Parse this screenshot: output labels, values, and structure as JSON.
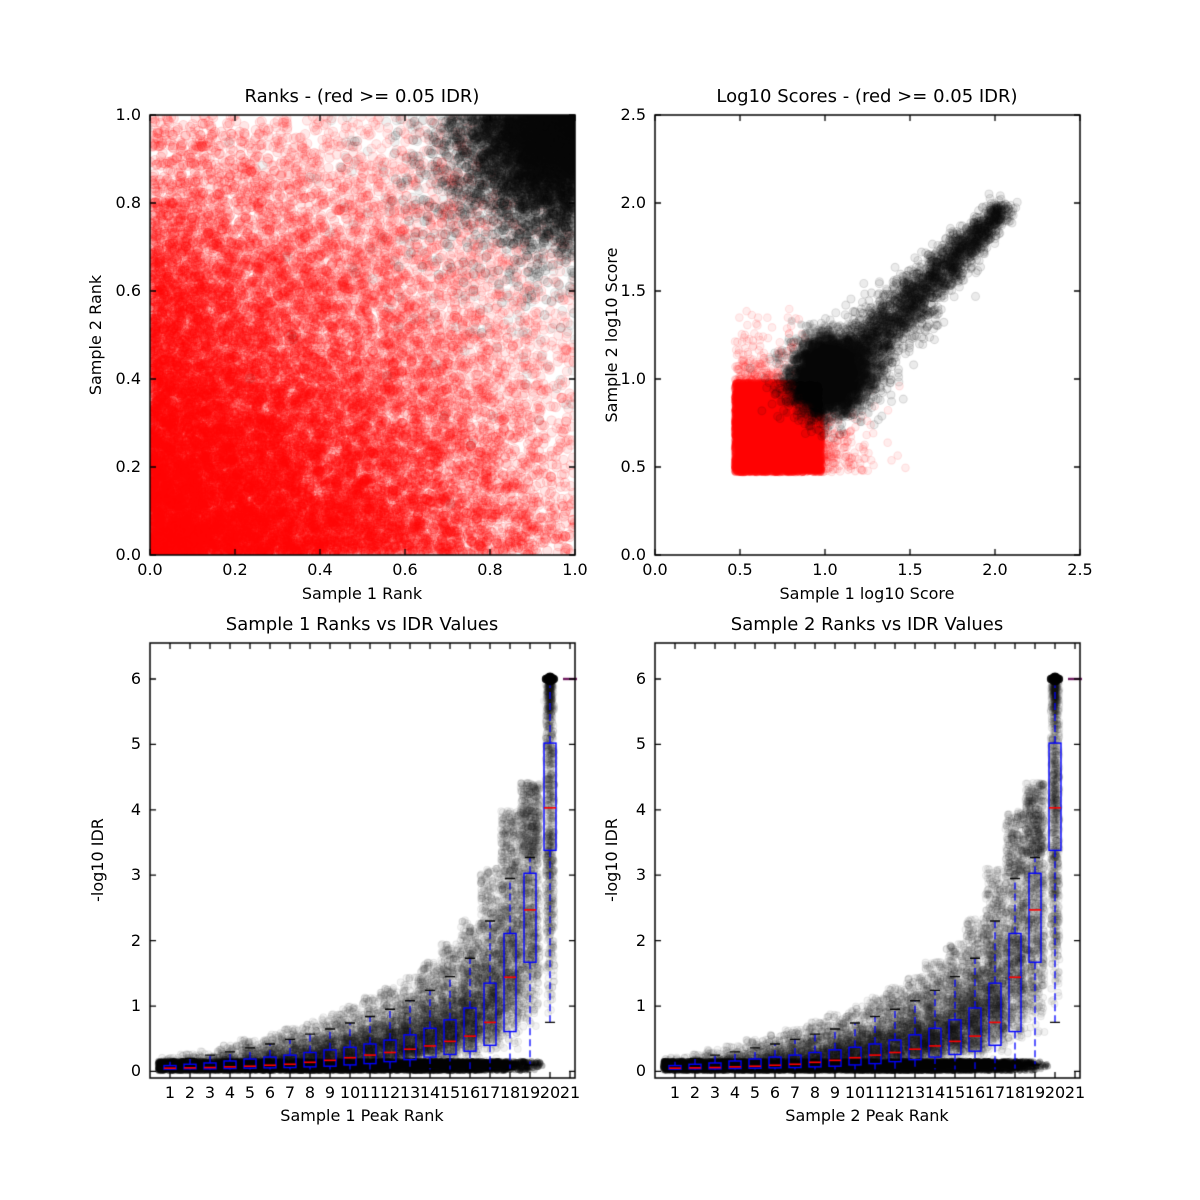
{
  "figure": {
    "background": "#ffffff",
    "description": "Matplotlib-style 2x2 IDR consistency figure: two scatter panels (rank and log10-score consistency, red = irreproducible points with IDR >= 0.05, black = reproducible) and two boxplot-over-scatter panels of -log10 IDR versus peak rank bin."
  },
  "colors": {
    "irreproducible": "#ff0000",
    "reproducible": "#000000",
    "box": "#0000ff",
    "median": "#ff0000",
    "whisker": "#0000ff",
    "cap": "#000000",
    "collapsed_box": "#6e1a5e",
    "axis": "#000000"
  },
  "chart_data": [
    {
      "id": "rank-scatter",
      "type": "scatter",
      "title": "Ranks - (red >= 0.05 IDR)",
      "xlabel": "Sample 1 Rank",
      "ylabel": "Sample 2 Rank",
      "xlim": [
        0.0,
        1.0
      ],
      "ylim": [
        0.0,
        1.0
      ],
      "xticks": [
        0.0,
        0.2,
        0.4,
        0.6,
        0.8,
        1.0
      ],
      "yticks": [
        0.0,
        0.2,
        0.4,
        0.6,
        0.8,
        1.0
      ],
      "tick_format": "f1",
      "grid": false,
      "legend": "none",
      "series": [
        {
          "name": "IDR >= 0.05",
          "color": "#ff0000",
          "description": "fills the unit square; densest (near solid red) toward low ranks around (0,0), fading to sparse pale circles toward (1,1), (0,1) and (1,0)"
        },
        {
          "name": "IDR < 0.05",
          "color": "#000000",
          "description": "dense opaque quarter-disc cluster in the top-right corner near (1,1), radius about 0.3, sparse fringe to 0.45"
        }
      ],
      "clouds": [
        {
          "kind": "fade_square",
          "n": 16000,
          "alpha_base": 0.05,
          "alpha_gain": 0.2,
          "fade_k": 1.3,
          "radius": 4.6,
          "ring": true,
          "color": "#ff0000"
        },
        {
          "kind": "corner_blob",
          "n": 7000,
          "corner": [
            1,
            1
          ],
          "sigma": 0.15,
          "alpha": 0.1,
          "radius": 4.4,
          "ring": true,
          "color": "#000000"
        },
        {
          "kind": "corner_blob",
          "n": 900,
          "corner": [
            1,
            1
          ],
          "sigma": 0.28,
          "alpha": 0.055,
          "radius": 4.4,
          "ring": true,
          "color": "#000000"
        }
      ]
    },
    {
      "id": "score-scatter",
      "type": "scatter",
      "title": "Log10 Scores - (red >= 0.05 IDR)",
      "xlabel": "Sample 1 log10 Score",
      "ylabel": "Sample 2 log10 Score",
      "xlim": [
        0.0,
        2.5
      ],
      "ylim": [
        0.0,
        2.5
      ],
      "xticks": [
        0.0,
        0.5,
        1.0,
        1.5,
        2.0,
        2.5
      ],
      "yticks": [
        0.0,
        0.5,
        1.0,
        1.5,
        2.0,
        2.5
      ],
      "tick_format": "f1",
      "grid": false,
      "legend": "none",
      "series": [
        {
          "name": "IDR >= 0.05",
          "color": "#ff0000",
          "description": "solid red block from (0.47,0.47) to about (1.0,1.0) with sharp lower-left edges and fuzzy fade to about (1.35,1.25)"
        },
        {
          "name": "IDR < 0.05",
          "color": "#000000",
          "description": "opaque disc centered near (1.03,1.03) radius ~0.2 plus diagonal comet of points along y~x reaching (2.05,1.97)"
        }
      ],
      "clouds": [
        {
          "kind": "square",
          "n": 6500,
          "x0": 0.47,
          "y0": 0.47,
          "w": 0.51,
          "h": 0.51,
          "alpha": 0.3,
          "radius": 3.8,
          "ring": false,
          "color": "#ff0000"
        },
        {
          "kind": "corner_fuzz",
          "n": 4500,
          "origin": [
            0.47,
            0.47
          ],
          "sigma": 0.27,
          "alpha": 0.07,
          "radius": 3.8,
          "ring": true,
          "color": "#ff0000"
        },
        {
          "kind": "gauss",
          "n": 4500,
          "cx": 1.03,
          "cy": 1.03,
          "sx": 0.095,
          "sy": 0.095,
          "alpha": 0.14,
          "radius": 4.0,
          "ring": false,
          "color": "#000000"
        },
        {
          "kind": "comet",
          "n": 4000,
          "start": [
            0.98,
            0.93
          ],
          "end": [
            2.05,
            1.97
          ],
          "spread0": 0.13,
          "spread1": 0.035,
          "pow": 1.7,
          "alpha": 0.08,
          "radius": 4.0,
          "ring": true,
          "color": "#000000"
        }
      ]
    },
    {
      "id": "sample1-rank-vs-idr",
      "type": "boxplot_scatter",
      "title": "Sample 1 Ranks vs IDR Values",
      "xlabel": "Sample 1 Peak Rank",
      "ylabel": "-log10 IDR",
      "xlim": [
        0.0,
        21.25
      ],
      "ylim": [
        -0.1,
        6.55
      ],
      "xticks": [
        1,
        2,
        3,
        4,
        5,
        6,
        7,
        8,
        9,
        10,
        11,
        12,
        13,
        14,
        15,
        16,
        17,
        18,
        19,
        20,
        21
      ],
      "yticks": [
        0,
        1,
        2,
        3,
        4,
        5,
        6
      ],
      "tick_format": "int",
      "grid": false,
      "legend": "none",
      "box_style": {
        "box_color": "#0000ff",
        "median_color": "#ff0000",
        "whisker_color": "#0000ff",
        "cap_color": "#000000",
        "collapsed_color": "#6e1a5e"
      },
      "boxes": [
        {
          "rank": 1,
          "whislo": 0.02,
          "q1": 0.035,
          "med": 0.05,
          "q3": 0.09,
          "whishi": 0.16
        },
        {
          "rank": 2,
          "whislo": 0.02,
          "q1": 0.04,
          "med": 0.055,
          "q3": 0.11,
          "whishi": 0.2
        },
        {
          "rank": 3,
          "whislo": 0.02,
          "q1": 0.04,
          "med": 0.06,
          "q3": 0.13,
          "whishi": 0.25
        },
        {
          "rank": 4,
          "whislo": 0.02,
          "q1": 0.045,
          "med": 0.07,
          "q3": 0.16,
          "whishi": 0.3
        },
        {
          "rank": 5,
          "whislo": 0.02,
          "q1": 0.05,
          "med": 0.08,
          "q3": 0.19,
          "whishi": 0.36
        },
        {
          "rank": 6,
          "whislo": 0.02,
          "q1": 0.055,
          "med": 0.095,
          "q3": 0.22,
          "whishi": 0.42
        },
        {
          "rank": 7,
          "whislo": 0.02,
          "q1": 0.06,
          "med": 0.11,
          "q3": 0.25,
          "whishi": 0.49
        },
        {
          "rank": 8,
          "whislo": 0.02,
          "q1": 0.07,
          "med": 0.14,
          "q3": 0.29,
          "whishi": 0.57
        },
        {
          "rank": 9,
          "whislo": 0.02,
          "q1": 0.08,
          "med": 0.17,
          "q3": 0.33,
          "whishi": 0.65
        },
        {
          "rank": 10,
          "whislo": 0.02,
          "q1": 0.1,
          "med": 0.21,
          "q3": 0.37,
          "whishi": 0.74
        },
        {
          "rank": 11,
          "whislo": 0.02,
          "q1": 0.12,
          "med": 0.25,
          "q3": 0.42,
          "whishi": 0.84
        },
        {
          "rank": 12,
          "whislo": 0.02,
          "q1": 0.15,
          "med": 0.29,
          "q3": 0.48,
          "whishi": 0.95
        },
        {
          "rank": 13,
          "whislo": 0.02,
          "q1": 0.18,
          "med": 0.34,
          "q3": 0.56,
          "whishi": 1.08
        },
        {
          "rank": 14,
          "whislo": 0.02,
          "q1": 0.22,
          "med": 0.39,
          "q3": 0.66,
          "whishi": 1.24
        },
        {
          "rank": 15,
          "whislo": 0.02,
          "q1": 0.26,
          "med": 0.46,
          "q3": 0.79,
          "whishi": 1.45
        },
        {
          "rank": 16,
          "whislo": 0.02,
          "q1": 0.31,
          "med": 0.54,
          "q3": 0.97,
          "whishi": 1.73
        },
        {
          "rank": 17,
          "whislo": 0.02,
          "q1": 0.4,
          "med": 0.75,
          "q3": 1.35,
          "whishi": 2.3
        },
        {
          "rank": 18,
          "whislo": 0.03,
          "q1": 0.61,
          "med": 1.44,
          "q3": 2.11,
          "whishi": 2.95
        },
        {
          "rank": 19,
          "whislo": 0.1,
          "q1": 1.67,
          "med": 2.47,
          "q3": 3.03,
          "whishi": 3.27
        },
        {
          "rank": 20,
          "whislo": 0.75,
          "q1": 3.38,
          "med": 4.03,
          "q3": 5.02,
          "whishi": 6.0
        },
        {
          "rank": 21,
          "whislo": 6.0,
          "q1": 6.0,
          "med": 6.0,
          "q3": 6.0,
          "whishi": 6.0,
          "collapsed": true
        }
      ],
      "special": {
        "saturation_dot": {
          "x": 20,
          "y": 6,
          "radius": 6.5,
          "color": "#000000"
        }
      },
      "clouds": [
        {
          "kind": "band",
          "n": 4000,
          "ylo": 0.06,
          "yhi": 0.16,
          "x0": 0.4,
          "x1": 16.0,
          "x_fade_end": 19.8,
          "solid_frac": 0.88,
          "alpha": 0.3,
          "radius": 3.2,
          "ring": false,
          "color": "#000000"
        },
        {
          "kind": "band",
          "n": 2600,
          "ylo": 0.005,
          "yhi": 0.055,
          "x0": 0.4,
          "x1": 14.5,
          "x_fade_end": 19.5,
          "solid_frac": 0.85,
          "alpha": 0.22,
          "radius": 3.0,
          "ring": false,
          "color": "#000000"
        },
        {
          "kind": "rank_cloud",
          "n_base": 70,
          "n_coef": 13,
          "n_pow": 1.45,
          "sigma": 0.55,
          "alpha": 0.05,
          "radius": 3.4,
          "ring": true,
          "color": "#000000"
        },
        {
          "kind": "pile",
          "n": 350,
          "x": 20,
          "y": 6,
          "sx": 0.09,
          "sy": 0.3,
          "alpha": 0.06,
          "radius": 3.4,
          "ring": false,
          "color": "#000000"
        }
      ]
    },
    {
      "id": "sample2-rank-vs-idr",
      "type": "boxplot_scatter",
      "title": "Sample 2 Ranks vs IDR Values",
      "xlabel": "Sample 2 Peak Rank",
      "ylabel": "-log10 IDR",
      "xlim": [
        0.0,
        21.25
      ],
      "ylim": [
        -0.1,
        6.55
      ],
      "xticks": [
        1,
        2,
        3,
        4,
        5,
        6,
        7,
        8,
        9,
        10,
        11,
        12,
        13,
        14,
        15,
        16,
        17,
        18,
        19,
        20,
        21
      ],
      "yticks": [
        0,
        1,
        2,
        3,
        4,
        5,
        6
      ],
      "tick_format": "int",
      "grid": false,
      "legend": "none",
      "box_style": {
        "box_color": "#0000ff",
        "median_color": "#ff0000",
        "whisker_color": "#0000ff",
        "cap_color": "#000000",
        "collapsed_color": "#6e1a5e"
      },
      "boxes": [
        {
          "rank": 1,
          "whislo": 0.02,
          "q1": 0.035,
          "med": 0.05,
          "q3": 0.09,
          "whishi": 0.16
        },
        {
          "rank": 2,
          "whislo": 0.02,
          "q1": 0.04,
          "med": 0.055,
          "q3": 0.11,
          "whishi": 0.2
        },
        {
          "rank": 3,
          "whislo": 0.02,
          "q1": 0.04,
          "med": 0.06,
          "q3": 0.13,
          "whishi": 0.25
        },
        {
          "rank": 4,
          "whislo": 0.02,
          "q1": 0.045,
          "med": 0.07,
          "q3": 0.16,
          "whishi": 0.3
        },
        {
          "rank": 5,
          "whislo": 0.02,
          "q1": 0.05,
          "med": 0.08,
          "q3": 0.19,
          "whishi": 0.36
        },
        {
          "rank": 6,
          "whislo": 0.02,
          "q1": 0.055,
          "med": 0.095,
          "q3": 0.22,
          "whishi": 0.42
        },
        {
          "rank": 7,
          "whislo": 0.02,
          "q1": 0.06,
          "med": 0.11,
          "q3": 0.25,
          "whishi": 0.49
        },
        {
          "rank": 8,
          "whislo": 0.02,
          "q1": 0.07,
          "med": 0.14,
          "q3": 0.29,
          "whishi": 0.57
        },
        {
          "rank": 9,
          "whislo": 0.02,
          "q1": 0.08,
          "med": 0.17,
          "q3": 0.33,
          "whishi": 0.65
        },
        {
          "rank": 10,
          "whislo": 0.02,
          "q1": 0.1,
          "med": 0.21,
          "q3": 0.37,
          "whishi": 0.74
        },
        {
          "rank": 11,
          "whislo": 0.02,
          "q1": 0.12,
          "med": 0.25,
          "q3": 0.42,
          "whishi": 0.84
        },
        {
          "rank": 12,
          "whislo": 0.02,
          "q1": 0.15,
          "med": 0.29,
          "q3": 0.48,
          "whishi": 0.95
        },
        {
          "rank": 13,
          "whislo": 0.02,
          "q1": 0.18,
          "med": 0.34,
          "q3": 0.56,
          "whishi": 1.08
        },
        {
          "rank": 14,
          "whislo": 0.02,
          "q1": 0.22,
          "med": 0.39,
          "q3": 0.66,
          "whishi": 1.24
        },
        {
          "rank": 15,
          "whislo": 0.02,
          "q1": 0.26,
          "med": 0.46,
          "q3": 0.79,
          "whishi": 1.45
        },
        {
          "rank": 16,
          "whislo": 0.02,
          "q1": 0.31,
          "med": 0.54,
          "q3": 0.97,
          "whishi": 1.73
        },
        {
          "rank": 17,
          "whislo": 0.02,
          "q1": 0.4,
          "med": 0.75,
          "q3": 1.35,
          "whishi": 2.3
        },
        {
          "rank": 18,
          "whislo": 0.03,
          "q1": 0.61,
          "med": 1.44,
          "q3": 2.11,
          "whishi": 2.95
        },
        {
          "rank": 19,
          "whislo": 0.1,
          "q1": 1.67,
          "med": 2.47,
          "q3": 3.03,
          "whishi": 3.27
        },
        {
          "rank": 20,
          "whislo": 0.75,
          "q1": 3.38,
          "med": 4.03,
          "q3": 5.02,
          "whishi": 6.0
        },
        {
          "rank": 21,
          "whislo": 6.0,
          "q1": 6.0,
          "med": 6.0,
          "q3": 6.0,
          "whishi": 6.0,
          "collapsed": true
        }
      ],
      "special": {
        "saturation_dot": {
          "x": 20,
          "y": 6,
          "radius": 6.5,
          "color": "#000000"
        }
      },
      "clouds": [
        {
          "kind": "band",
          "n": 4000,
          "ylo": 0.06,
          "yhi": 0.16,
          "x0": 0.4,
          "x1": 16.0,
          "x_fade_end": 19.8,
          "solid_frac": 0.88,
          "alpha": 0.3,
          "radius": 3.2,
          "ring": false,
          "color": "#000000"
        },
        {
          "kind": "band",
          "n": 2600,
          "ylo": 0.005,
          "yhi": 0.055,
          "x0": 0.4,
          "x1": 14.5,
          "x_fade_end": 19.5,
          "solid_frac": 0.85,
          "alpha": 0.22,
          "radius": 3.0,
          "ring": false,
          "color": "#000000"
        },
        {
          "kind": "rank_cloud",
          "n_base": 70,
          "n_coef": 13,
          "n_pow": 1.45,
          "sigma": 0.55,
          "alpha": 0.05,
          "radius": 3.4,
          "ring": true,
          "color": "#000000"
        },
        {
          "kind": "pile",
          "n": 350,
          "x": 20,
          "y": 6,
          "sx": 0.09,
          "sy": 0.3,
          "alpha": 0.06,
          "radius": 3.4,
          "ring": false,
          "color": "#000000"
        }
      ]
    }
  ]
}
